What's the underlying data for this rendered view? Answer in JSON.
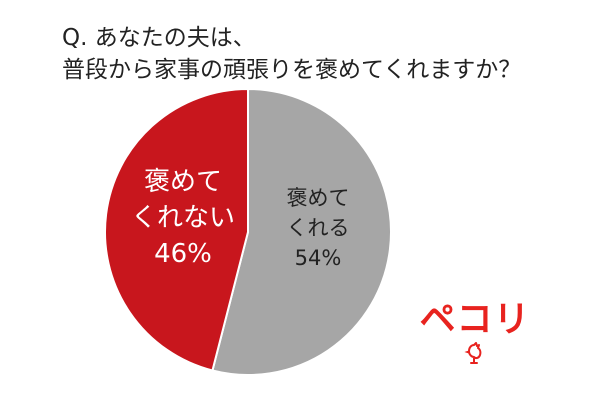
{
  "title_lines": [
    "Q. あなたの夫は、",
    "普段から家事の頑張りを褒めてくれますか？"
  ],
  "chart_data": {
    "type": "pie",
    "slices": [
      {
        "label_lines": [
          "褒めて",
          "くれる"
        ],
        "value": 54,
        "value_label": "54%",
        "color": "#a6a6a6",
        "text_color": "#222222"
      },
      {
        "label_lines": [
          "褒めて",
          "くれない"
        ],
        "value": 46,
        "value_label": "46%",
        "color": "#c8161d",
        "text_color": "#ffffff"
      }
    ],
    "start": "top",
    "direction": "clockwise"
  },
  "logo": {
    "text": "ペコリ",
    "color": "#e8231f",
    "icon": "rooster-icon"
  }
}
